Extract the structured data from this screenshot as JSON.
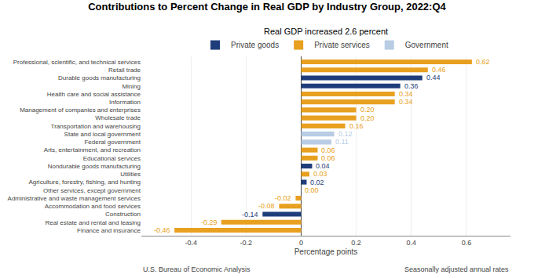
{
  "chart_data": {
    "type": "bar",
    "orientation": "horizontal",
    "title": "Contributions to Percent Change in Real GDP by Industry Group, 2022:Q4",
    "subtitle": "Real GDP increased 2.6 percent",
    "xlabel": "Percentage points",
    "annotations": [
      "U.S. Bureau of Economic Analysis",
      "Seasonally adjusted annual rates"
    ],
    "categories": [
      "Professional, scientific, and technical services",
      "Retail trade",
      "Durable goods manufacturing",
      "Mining",
      "Health care and social assistance",
      "Information",
      "Management of companies and enterprises",
      "Wholesale trade",
      "Transportation and warehousing",
      "State and local government",
      "Federal government",
      "Arts, entertainment, and recreation",
      "Educational services",
      "Nondurable goods manufacturing",
      "Utilities",
      "Agriculture, forestry, fishing, and hunting",
      "Other services, except government",
      "Administrative and waste management services",
      "Accommodation and food services",
      "Construction",
      "Real estate and rental and leasing",
      "Finance and insurance"
    ],
    "series": [
      {
        "name": "Private goods",
        "color": "#1f3d7a",
        "values": [
          null,
          null,
          0.44,
          0.36,
          null,
          null,
          null,
          null,
          null,
          null,
          null,
          null,
          null,
          0.04,
          null,
          0.02,
          null,
          null,
          null,
          -0.14,
          null,
          null
        ],
        "value_labels": [
          null,
          null,
          "0.44",
          "0.36",
          null,
          null,
          null,
          null,
          null,
          null,
          null,
          null,
          null,
          "0.04",
          null,
          "0.02",
          null,
          null,
          null,
          "-0.14",
          null,
          null
        ]
      },
      {
        "name": "Private services",
        "color": "#e8a020",
        "values": [
          0.62,
          0.46,
          null,
          null,
          0.34,
          0.34,
          0.2,
          0.2,
          0.16,
          null,
          null,
          0.06,
          0.06,
          null,
          0.03,
          null,
          0.0,
          -0.02,
          -0.08,
          null,
          -0.29,
          -0.46
        ],
        "value_labels": [
          "0.62",
          "0.46",
          null,
          null,
          "0.34",
          "0.34",
          "0.20",
          "0.20",
          "0.16",
          null,
          null,
          "0.06",
          "0.06",
          null,
          "0.03",
          null,
          "0.00",
          "-0.02",
          "-0.08",
          null,
          "-0.29",
          "-0.46"
        ]
      },
      {
        "name": "Government",
        "color": "#b8cce4",
        "values": [
          null,
          null,
          null,
          null,
          null,
          null,
          null,
          null,
          null,
          0.12,
          0.11,
          null,
          null,
          null,
          null,
          null,
          null,
          null,
          null,
          null,
          null,
          null
        ],
        "value_labels": [
          null,
          null,
          null,
          null,
          null,
          null,
          null,
          null,
          null,
          "0.12",
          "0.11",
          null,
          null,
          null,
          null,
          null,
          null,
          null,
          null,
          null,
          null,
          null
        ]
      }
    ],
    "xlim": [
      -0.58,
      0.76
    ],
    "xticks": [
      -0.4,
      -0.2,
      0,
      0.2,
      0.4,
      0.6
    ],
    "grid": true,
    "data_labels": true,
    "legend": "top"
  }
}
